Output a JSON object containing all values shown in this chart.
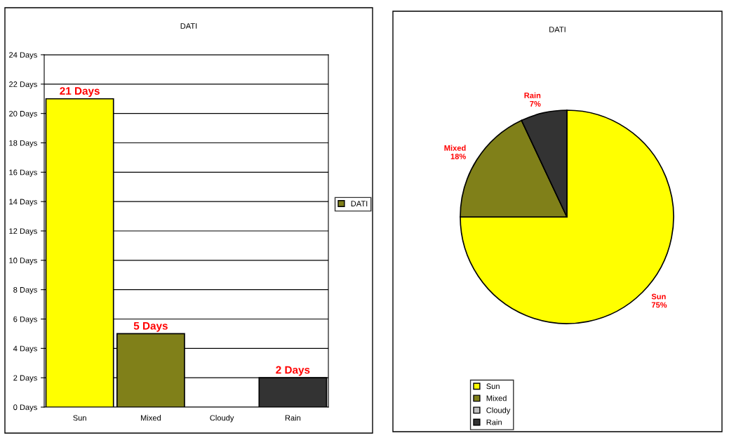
{
  "chart_data": [
    {
      "type": "bar",
      "title": "DATI",
      "categories": [
        "Sun",
        "Mixed",
        "Cloudy",
        "Rain"
      ],
      "series": [
        {
          "name": "DATI",
          "color": "#808019",
          "colors": [
            "#ffff00",
            "#808019",
            "#c0c0c0",
            "#333333"
          ],
          "values": [
            21,
            5,
            0,
            2
          ],
          "value_labels": [
            "21 Days",
            "5 Days",
            null,
            "2 Days"
          ]
        }
      ],
      "ylim": [
        0,
        24
      ],
      "yticks": [
        {
          "value": 0,
          "label": "0 Days"
        },
        {
          "value": 2,
          "label": "2 Days"
        },
        {
          "value": 4,
          "label": "4 Days"
        },
        {
          "value": 6,
          "label": "6 Days"
        },
        {
          "value": 8,
          "label": "8 Days"
        },
        {
          "value": 10,
          "label": "10 Days"
        },
        {
          "value": 12,
          "label": "12 Days"
        },
        {
          "value": 14,
          "label": "14 Days"
        },
        {
          "value": 16,
          "label": "16 Days"
        },
        {
          "value": 18,
          "label": "18 Days"
        },
        {
          "value": 20,
          "label": "20 Days"
        },
        {
          "value": 22,
          "label": "22 Days"
        },
        {
          "value": 24,
          "label": "24 Days"
        }
      ],
      "grid": "y",
      "legend": "right"
    },
    {
      "type": "pie",
      "title": "DATI",
      "categories": [
        "Sun",
        "Mixed",
        "Cloudy",
        "Rain"
      ],
      "values": [
        75,
        18,
        0,
        7
      ],
      "colors": [
        "#ffff00",
        "#808019",
        "#c0c0c0",
        "#333333"
      ],
      "value_labels": [
        "75%",
        "18%",
        null,
        "7%"
      ],
      "legend": "bottom left"
    }
  ]
}
